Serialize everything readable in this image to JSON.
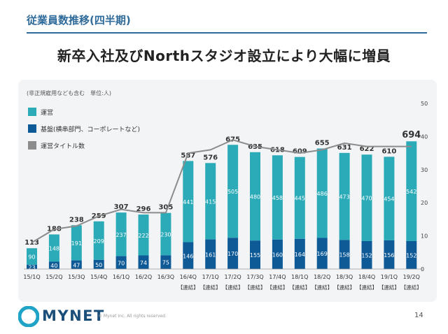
{
  "header": {
    "section_title": "従業員数推移(四半期)",
    "slide_title": "新卒入社及びNorthスタジオ設立により大幅に増員"
  },
  "chart_data": {
    "type": "bar",
    "note": "(非正規雇用なども含む　単位:人)",
    "categories": [
      "15/1Q",
      "15/2Q",
      "15/3Q",
      "15/4Q",
      "16/1Q",
      "16/2Q",
      "16/3Q",
      "16/4Q",
      "17/1Q",
      "17/2Q",
      "17/3Q",
      "17/4Q",
      "18/1Q",
      "18/2Q",
      "18/3Q",
      "18/4Q",
      "19/1Q",
      "19/2Q"
    ],
    "sub_labels": [
      "",
      "",
      "",
      "",
      "",
      "",
      "",
      "【連結】",
      "【連結】",
      "【連結】",
      "【連結】",
      "【連結】",
      "【連結】",
      "【連結】",
      "【連結】",
      "【連結】",
      "【連結】",
      "【連結】"
    ],
    "series": [
      {
        "name": "基盤(横串部門、コーポレートなど)",
        "type": "bar",
        "color": "#0d5a97",
        "values": [
          23,
          40,
          47,
          50,
          70,
          74,
          75,
          146,
          161,
          170,
          155,
          160,
          164,
          169,
          158,
          152,
          156,
          152
        ]
      },
      {
        "name": "運営",
        "type": "bar",
        "color": "#2baab8",
        "values": [
          90,
          148,
          191,
          209,
          237,
          222,
          230,
          441,
          415,
          505,
          480,
          458,
          445,
          486,
          473,
          470,
          454,
          542
        ]
      },
      {
        "name": "運営タイトル数",
        "type": "line",
        "color": "#8c8c8c",
        "axis": "right",
        "values": [
          8,
          12,
          13,
          16,
          18,
          17,
          17,
          35,
          36,
          39,
          37,
          36,
          35,
          36,
          38,
          37,
          37,
          37
        ]
      }
    ],
    "totals": [
      113,
      188,
      238,
      259,
      307,
      296,
      305,
      587,
      576,
      675,
      635,
      618,
      609,
      655,
      631,
      622,
      610,
      694
    ],
    "ylim_left": [
      0,
      900
    ],
    "ylim_right": [
      0,
      50
    ],
    "right_ticks": [
      0,
      10,
      20,
      30,
      40,
      50
    ],
    "legend_position": "top-left"
  },
  "footer": {
    "brand": "MYNET",
    "copyright": "© Mynet Inc. All rights reserved.",
    "page_number": "14"
  },
  "colors": {
    "accent": "#2f6b9a",
    "bar_top": "#2baab8",
    "bar_base": "#0d5a97",
    "line": "#8c8c8c",
    "panel": "#f3f4f6"
  }
}
